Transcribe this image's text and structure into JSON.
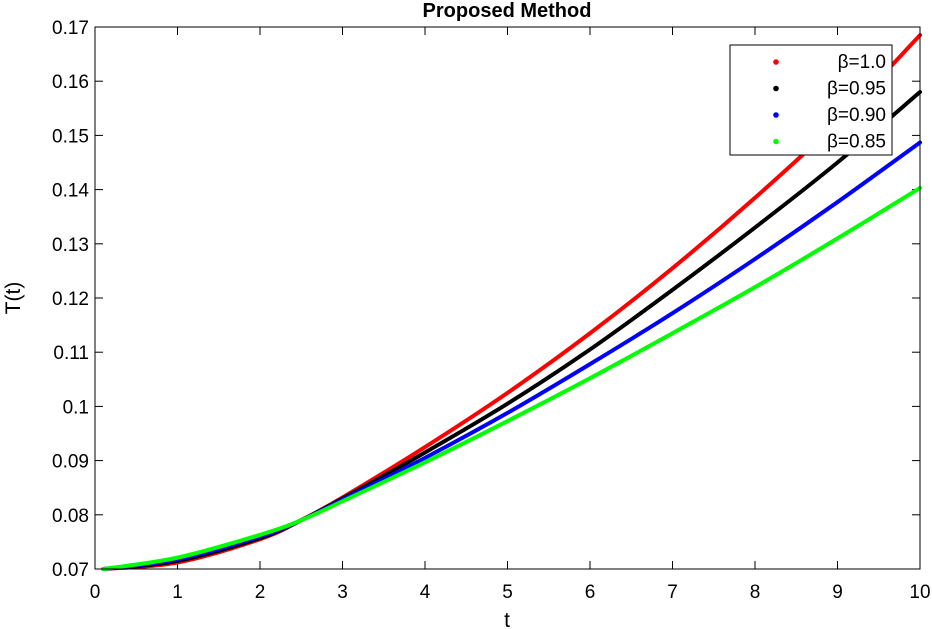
{
  "chart_data": {
    "type": "line",
    "title": "Proposed Method",
    "xlabel": "t",
    "ylabel": "T(t)",
    "xlim": [
      0,
      10
    ],
    "ylim": [
      0.07,
      0.17
    ],
    "xticks": [
      "0",
      "1",
      "2",
      "3",
      "4",
      "5",
      "6",
      "7",
      "8",
      "9",
      "10"
    ],
    "yticks": [
      "0.07",
      "0.08",
      "0.09",
      "0.1",
      "0.11",
      "0.12",
      "0.13",
      "0.14",
      "0.15",
      "0.16",
      "0.17"
    ],
    "legend_position": "top-right",
    "grid": false,
    "x": [
      0.1,
      1,
      2,
      2.5,
      3,
      4,
      5,
      6,
      7,
      8,
      9,
      10
    ],
    "series": [
      {
        "name": "β=1.0",
        "color": "#ff0000",
        "values": [
          0.07,
          0.0712,
          0.0755,
          0.079,
          0.0832,
          0.0925,
          0.1025,
          0.1135,
          0.1255,
          0.1385,
          0.1525,
          0.1685
        ]
      },
      {
        "name": "β=0.95",
        "color": "#000000",
        "values": [
          0.07,
          0.0715,
          0.0757,
          0.079,
          0.083,
          0.0915,
          0.1005,
          0.1105,
          0.1215,
          0.133,
          0.145,
          0.158
        ]
      },
      {
        "name": "β=0.90",
        "color": "#0000ff",
        "values": [
          0.07,
          0.0718,
          0.076,
          0.079,
          0.0828,
          0.0905,
          0.0988,
          0.1078,
          0.1172,
          0.1272,
          0.1377,
          0.1487
        ]
      },
      {
        "name": "β=0.85",
        "color": "#00ff00",
        "values": [
          0.07,
          0.0721,
          0.0763,
          0.079,
          0.0825,
          0.0897,
          0.0973,
          0.1052,
          0.1135,
          0.122,
          0.131,
          0.1403
        ]
      }
    ]
  }
}
